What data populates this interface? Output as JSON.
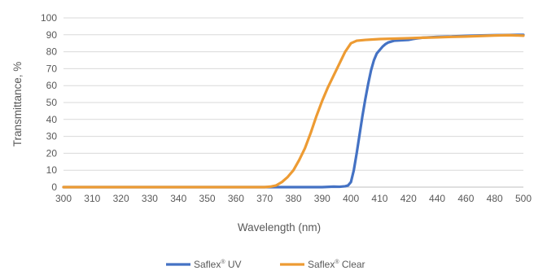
{
  "chart_data": {
    "type": "line",
    "title": "",
    "xlabel": "Wavelength (nm)",
    "ylabel": "Transmittance, %",
    "xlim": [
      300,
      500
    ],
    "ylim": [
      0,
      100
    ],
    "x_ticks": [
      300,
      310,
      320,
      330,
      340,
      350,
      360,
      370,
      380,
      390,
      400,
      410,
      420,
      440,
      460,
      480,
      500
    ],
    "y_ticks": [
      0,
      10,
      20,
      30,
      40,
      50,
      60,
      70,
      80,
      90,
      100
    ],
    "grid": "horizontal",
    "legend_position": "bottom",
    "series": [
      {
        "name": "Saflex UV",
        "name_main": "Saflex",
        "name_sup": "®",
        "name_suffix": " UV",
        "color": "#4472C4",
        "points": [
          [
            300,
            0
          ],
          [
            390,
            0
          ],
          [
            394,
            0.3
          ],
          [
            396,
            0.2
          ],
          [
            398,
            0.5
          ],
          [
            399,
            1
          ],
          [
            400,
            3
          ],
          [
            401,
            10
          ],
          [
            402,
            20
          ],
          [
            403,
            31
          ],
          [
            404,
            42
          ],
          [
            405,
            52
          ],
          [
            406,
            61
          ],
          [
            407,
            69
          ],
          [
            408,
            75
          ],
          [
            409,
            79
          ],
          [
            410,
            81
          ],
          [
            411,
            83
          ],
          [
            412,
            84.5
          ],
          [
            413,
            85.5
          ],
          [
            415,
            86.5
          ],
          [
            420,
            87
          ],
          [
            425,
            87.8
          ],
          [
            430,
            88.3
          ],
          [
            440,
            88.8
          ],
          [
            450,
            89
          ],
          [
            460,
            89.4
          ],
          [
            470,
            89.6
          ],
          [
            480,
            89.8
          ],
          [
            500,
            90
          ]
        ]
      },
      {
        "name": "Saflex Clear",
        "name_main": "Saflex",
        "name_sup": "®",
        "name_suffix": " Clear",
        "color": "#ED9B33",
        "points": [
          [
            300,
            0
          ],
          [
            370,
            0
          ],
          [
            372,
            0.3
          ],
          [
            374,
            1
          ],
          [
            376,
            3
          ],
          [
            378,
            6
          ],
          [
            380,
            10
          ],
          [
            382,
            16
          ],
          [
            384,
            23
          ],
          [
            386,
            32
          ],
          [
            388,
            42
          ],
          [
            390,
            51
          ],
          [
            392,
            59
          ],
          [
            394,
            66
          ],
          [
            396,
            73
          ],
          [
            398,
            80
          ],
          [
            400,
            85
          ],
          [
            402,
            86.5
          ],
          [
            405,
            87
          ],
          [
            410,
            87.5
          ],
          [
            420,
            88
          ],
          [
            430,
            88.3
          ],
          [
            440,
            88.5
          ],
          [
            450,
            88.8
          ],
          [
            460,
            89
          ],
          [
            470,
            89.3
          ],
          [
            480,
            89.6
          ],
          [
            490,
            89.8
          ],
          [
            500,
            89.5
          ]
        ]
      }
    ]
  }
}
